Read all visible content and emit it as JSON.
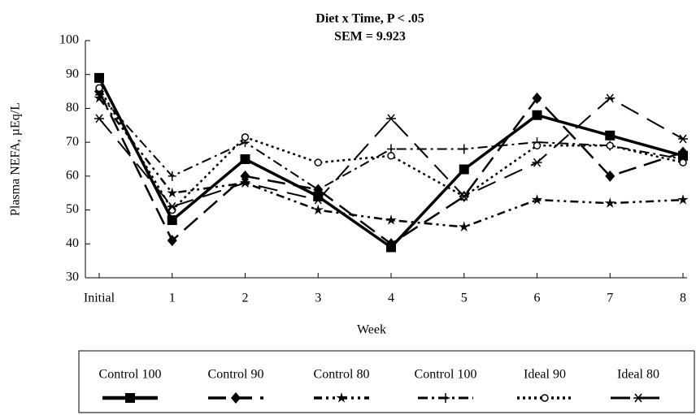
{
  "chart_data": {
    "type": "line",
    "title": "Diet x Time, P < .05",
    "subtitle": "SEM = 9.923",
    "x_label": "Week",
    "y_label": "Plasma NEFA, µEq/L",
    "categories": [
      "Initial",
      "1",
      "2",
      "3",
      "4",
      "5",
      "6",
      "7",
      "8"
    ],
    "ylim": [
      30,
      100
    ],
    "yticks": [
      30,
      40,
      50,
      60,
      70,
      80,
      90,
      100
    ],
    "grid": false,
    "legend": "bottom",
    "series": [
      {
        "name": "Control 100",
        "color": "#000000",
        "marker": "square",
        "values": [
          89,
          47,
          65,
          54,
          39,
          62,
          78,
          72,
          66
        ]
      },
      {
        "name": "Control 90",
        "color": "#000000",
        "marker": "diamond",
        "values": [
          85,
          41,
          60,
          56,
          40,
          54,
          83,
          60,
          67
        ]
      },
      {
        "name": "Control 80",
        "color": "#000000",
        "marker": "star",
        "values": [
          83,
          55,
          58,
          50,
          47,
          45,
          53,
          52,
          53
        ]
      },
      {
        "name": "Control 100",
        "color": "#000000",
        "marker": "plus",
        "values": [
          84,
          60,
          70,
          56,
          68,
          68,
          70,
          69,
          65
        ]
      },
      {
        "name": "Ideal 90",
        "color": "#000000",
        "marker": "circle",
        "values": [
          86,
          50,
          71.5,
          64,
          66,
          54,
          69,
          69,
          64
        ]
      },
      {
        "name": "Ideal 80",
        "color": "#000000",
        "marker": "asterisk",
        "values": [
          77,
          51,
          58,
          53,
          77,
          54,
          64,
          83,
          71
        ]
      }
    ]
  }
}
